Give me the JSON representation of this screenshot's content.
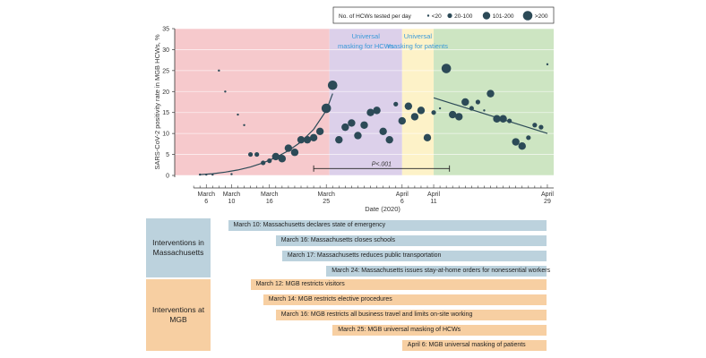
{
  "chart_data": {
    "type": "scatter",
    "ylabel": "SARS-CoV-2 positivity rate in MGB HCWs, %",
    "xlabel": "Date (2020)",
    "x_start_date": "March 1",
    "xlim": [
      0,
      60
    ],
    "ylim": [
      0,
      35
    ],
    "yticks": [
      0,
      5,
      10,
      15,
      20,
      25,
      30,
      35
    ],
    "xticks": [
      {
        "x": 5,
        "line1": "March",
        "line2": "6"
      },
      {
        "x": 9,
        "line1": "March",
        "line2": "10"
      },
      {
        "x": 15,
        "line1": "March",
        "line2": "16"
      },
      {
        "x": 24,
        "line1": "March",
        "line2": "25"
      },
      {
        "x": 36,
        "line1": "April",
        "line2": "6"
      },
      {
        "x": 41,
        "line1": "April",
        "line2": "11"
      },
      {
        "x": 59,
        "line1": "April",
        "line2": "29"
      }
    ],
    "periods": [
      {
        "label": "",
        "from": 0,
        "to": 24.5,
        "color": "#f6c9cc"
      },
      {
        "label": "Universal masking for HCWs",
        "from": 24.5,
        "to": 36,
        "color": "#dcd0ea"
      },
      {
        "label": "Universal masking for patients",
        "from": 36,
        "to": 41,
        "color": "#fdf2c8"
      },
      {
        "label": "",
        "from": 41,
        "to": 60,
        "color": "#cde5c2"
      }
    ],
    "legend": {
      "title": "No. of HCWs tested per day",
      "entries": [
        {
          "label": "<20",
          "size": 1
        },
        {
          "label": "20-100",
          "size": 2
        },
        {
          "label": "101-200",
          "size": 3
        },
        {
          "label": ">200",
          "size": 4
        }
      ]
    },
    "annotation": {
      "text": "P<.001",
      "from": 22,
      "to": 43.5,
      "y": 1
    },
    "trend_lines": [
      {
        "name": "pre-masking trend",
        "x": [
          4,
          6,
          8,
          10,
          12,
          14,
          16,
          18,
          20,
          22,
          24,
          25
        ],
        "y": [
          0.2,
          0.4,
          0.8,
          1.3,
          2,
          3,
          4.3,
          5.9,
          8,
          11,
          15.5,
          19.5
        ]
      },
      {
        "name": "post-masking trend",
        "x": [
          41,
          59
        ],
        "y": [
          18.5,
          10
        ]
      }
    ],
    "points": [
      {
        "x": 4,
        "y": 0.2,
        "size": 1
      },
      {
        "x": 5,
        "y": 0.2,
        "size": 1
      },
      {
        "x": 6,
        "y": 0.2,
        "size": 1
      },
      {
        "x": 7,
        "y": 25,
        "size": 1
      },
      {
        "x": 8,
        "y": 20,
        "size": 1
      },
      {
        "x": 9,
        "y": 0.3,
        "size": 1
      },
      {
        "x": 10,
        "y": 14.5,
        "size": 1
      },
      {
        "x": 11,
        "y": 12,
        "size": 1
      },
      {
        "x": 12,
        "y": 5,
        "size": 2
      },
      {
        "x": 13,
        "y": 5,
        "size": 2
      },
      {
        "x": 14,
        "y": 3,
        "size": 2
      },
      {
        "x": 15,
        "y": 3.5,
        "size": 2
      },
      {
        "x": 16,
        "y": 4.5,
        "size": 3
      },
      {
        "x": 17,
        "y": 4,
        "size": 3
      },
      {
        "x": 18,
        "y": 6.5,
        "size": 3
      },
      {
        "x": 19,
        "y": 5.5,
        "size": 3
      },
      {
        "x": 20,
        "y": 8.5,
        "size": 3
      },
      {
        "x": 21,
        "y": 8.5,
        "size": 3
      },
      {
        "x": 22,
        "y": 9,
        "size": 3
      },
      {
        "x": 23,
        "y": 10.5,
        "size": 3
      },
      {
        "x": 24,
        "y": 16,
        "size": 4
      },
      {
        "x": 25,
        "y": 21.5,
        "size": 4
      },
      {
        "x": 26,
        "y": 8.5,
        "size": 3
      },
      {
        "x": 27,
        "y": 11.5,
        "size": 3
      },
      {
        "x": 28,
        "y": 12.5,
        "size": 3
      },
      {
        "x": 29,
        "y": 9.5,
        "size": 3
      },
      {
        "x": 30,
        "y": 12,
        "size": 3
      },
      {
        "x": 31,
        "y": 15,
        "size": 3
      },
      {
        "x": 32,
        "y": 15.5,
        "size": 3
      },
      {
        "x": 33,
        "y": 10.5,
        "size": 3
      },
      {
        "x": 34,
        "y": 8.5,
        "size": 3
      },
      {
        "x": 35,
        "y": 17,
        "size": 2
      },
      {
        "x": 36,
        "y": 13,
        "size": 3
      },
      {
        "x": 37,
        "y": 16.5,
        "size": 3
      },
      {
        "x": 38,
        "y": 14,
        "size": 3
      },
      {
        "x": 39,
        "y": 15.5,
        "size": 3
      },
      {
        "x": 40,
        "y": 9,
        "size": 3
      },
      {
        "x": 41,
        "y": 15,
        "size": 2
      },
      {
        "x": 42,
        "y": 16,
        "size": 1
      },
      {
        "x": 43,
        "y": 25.5,
        "size": 4
      },
      {
        "x": 44,
        "y": 14.5,
        "size": 3
      },
      {
        "x": 45,
        "y": 14,
        "size": 3
      },
      {
        "x": 46,
        "y": 17.5,
        "size": 3
      },
      {
        "x": 47,
        "y": 16,
        "size": 2
      },
      {
        "x": 48,
        "y": 17.5,
        "size": 2
      },
      {
        "x": 49,
        "y": 15.5,
        "size": 1
      },
      {
        "x": 50,
        "y": 19.5,
        "size": 3
      },
      {
        "x": 51,
        "y": 13.5,
        "size": 3
      },
      {
        "x": 52,
        "y": 13.5,
        "size": 3
      },
      {
        "x": 53,
        "y": 13,
        "size": 2
      },
      {
        "x": 54,
        "y": 8,
        "size": 3
      },
      {
        "x": 55,
        "y": 7,
        "size": 3
      },
      {
        "x": 56,
        "y": 9,
        "size": 2
      },
      {
        "x": 57,
        "y": 12,
        "size": 2
      },
      {
        "x": 58,
        "y": 11.5,
        "size": 2
      },
      {
        "x": 59,
        "y": 26.5,
        "size": 1
      }
    ]
  },
  "interventions": {
    "timeline_start_day": 8.5,
    "groups": [
      {
        "label": "Interventions in Massachusetts",
        "color": "#bcd2dd",
        "events": [
          {
            "start_day": 10,
            "text": "March 10: Massachusetts declares state of emergency"
          },
          {
            "start_day": 16,
            "text": "March 16: Massachusetts closes schools"
          },
          {
            "start_day": 17,
            "text": "March 17: Massachusetts reduces public transportation"
          },
          {
            "start_day": 24,
            "text": "March 24: Massachusetts issues stay-at-home orders for nonessential workers"
          }
        ]
      },
      {
        "label": "Interventions at MGB",
        "color": "#f7cfa2",
        "events": [
          {
            "start_day": 12,
            "text": "March 12: MGB restricts visitors"
          },
          {
            "start_day": 14,
            "text": "March 14: MGB restricts elective procedures"
          },
          {
            "start_day": 16,
            "text": "March 16: MGB restricts all business travel and limits on-site working"
          },
          {
            "start_day": 25,
            "text": "March 25: MGB universal masking of HCWs"
          },
          {
            "start_day": 36,
            "text": "April 6: MGB universal masking of patients"
          }
        ]
      }
    ]
  }
}
